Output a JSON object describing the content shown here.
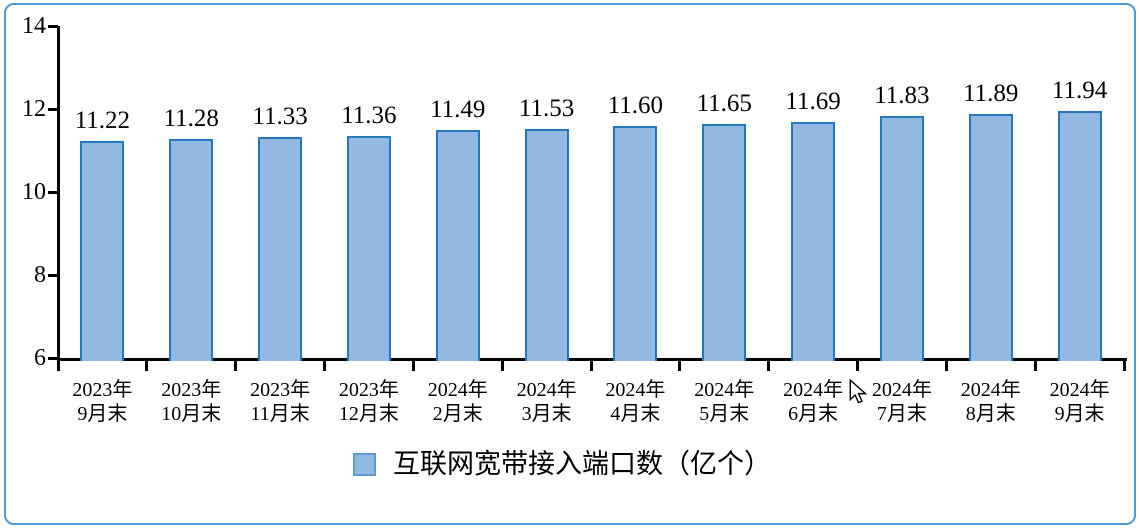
{
  "chart_data": {
    "type": "bar",
    "title": "",
    "legend": "互联网宽带接入端口数（亿个）",
    "legend_position": "bottom",
    "categories": [
      "2023年9月末",
      "2023年10月末",
      "2023年11月末",
      "2023年12月末",
      "2024年2月末",
      "2024年3月末",
      "2024年4月末",
      "2024年5月末",
      "2024年6月末",
      "2024年7月末",
      "2024年8月末",
      "2024年9月末"
    ],
    "values": [
      11.22,
      11.28,
      11.33,
      11.36,
      11.49,
      11.53,
      11.6,
      11.65,
      11.69,
      11.83,
      11.89,
      11.94
    ],
    "value_labels": [
      "11.22",
      "11.28",
      "11.33",
      "11.36",
      "11.49",
      "11.53",
      "11.60",
      "11.65",
      "11.69",
      "11.83",
      "11.89",
      "11.94"
    ],
    "xlabel": "",
    "ylabel": "",
    "ylim": [
      6,
      14
    ],
    "yticks": [
      6,
      8,
      10,
      12,
      14
    ],
    "grid": false,
    "colors": {
      "bar_fill": "#93B8E2",
      "bar_border": "#2478BE",
      "frame_border": "#4D9AD5",
      "axis": "#000000"
    }
  }
}
